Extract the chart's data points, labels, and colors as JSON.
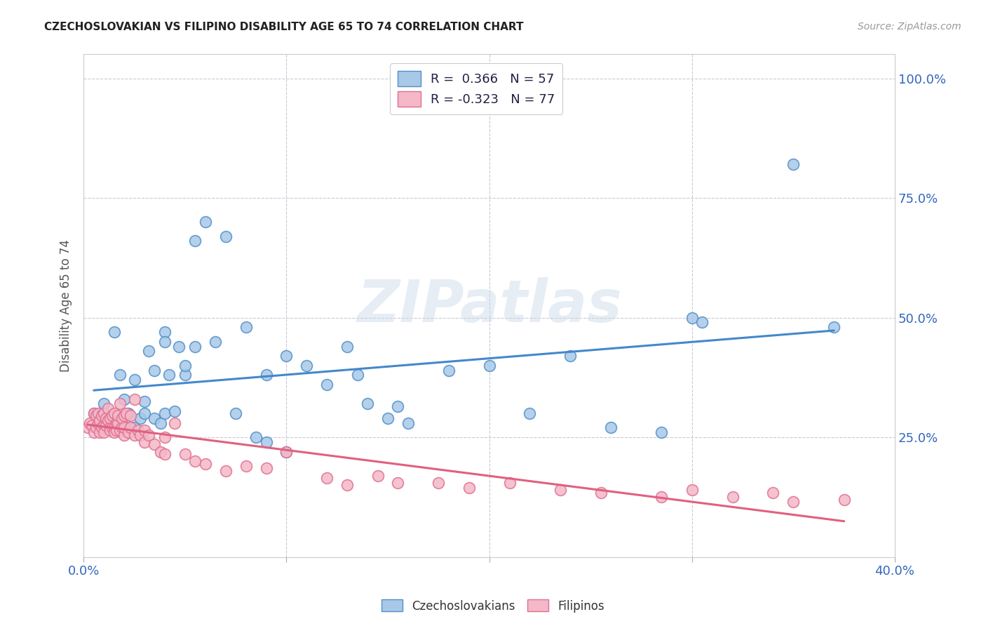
{
  "title": "CZECHOSLOVAKIAN VS FILIPINO DISABILITY AGE 65 TO 74 CORRELATION CHART",
  "source": "Source: ZipAtlas.com",
  "ylabel_label": "Disability Age 65 to 74",
  "xlim": [
    0.0,
    0.4
  ],
  "ylim": [
    0.0,
    1.05
  ],
  "xticks": [
    0.0,
    0.1,
    0.2,
    0.3,
    0.4
  ],
  "xticklabels_visible": [
    "0.0%",
    "",
    "",
    "",
    "40.0%"
  ],
  "yticks": [
    0.0,
    0.25,
    0.5,
    0.75,
    1.0
  ],
  "yticklabels": [
    "",
    "25.0%",
    "50.0%",
    "75.0%",
    "100.0%"
  ],
  "blue_R": 0.366,
  "blue_N": 57,
  "pink_R": -0.323,
  "pink_N": 77,
  "blue_color": "#a8c8e8",
  "pink_color": "#f4b8c8",
  "blue_edge_color": "#5090c8",
  "pink_edge_color": "#e07090",
  "blue_line_color": "#4488cc",
  "pink_line_color": "#e06080",
  "watermark_text": "ZIPatlas",
  "blue_scatter_x": [
    0.005,
    0.008,
    0.01,
    0.012,
    0.015,
    0.015,
    0.018,
    0.02,
    0.02,
    0.022,
    0.025,
    0.025,
    0.028,
    0.03,
    0.03,
    0.032,
    0.035,
    0.035,
    0.038,
    0.04,
    0.04,
    0.04,
    0.042,
    0.045,
    0.047,
    0.05,
    0.05,
    0.055,
    0.055,
    0.06,
    0.065,
    0.07,
    0.075,
    0.08,
    0.085,
    0.09,
    0.09,
    0.1,
    0.1,
    0.11,
    0.12,
    0.13,
    0.135,
    0.14,
    0.15,
    0.155,
    0.16,
    0.18,
    0.2,
    0.22,
    0.24,
    0.26,
    0.285,
    0.3,
    0.305,
    0.35,
    0.37
  ],
  "blue_scatter_y": [
    0.3,
    0.28,
    0.32,
    0.295,
    0.47,
    0.28,
    0.38,
    0.33,
    0.285,
    0.3,
    0.27,
    0.37,
    0.29,
    0.3,
    0.325,
    0.43,
    0.29,
    0.39,
    0.28,
    0.3,
    0.47,
    0.45,
    0.38,
    0.305,
    0.44,
    0.38,
    0.4,
    0.66,
    0.44,
    0.7,
    0.45,
    0.67,
    0.3,
    0.48,
    0.25,
    0.38,
    0.24,
    0.42,
    0.22,
    0.4,
    0.36,
    0.44,
    0.38,
    0.32,
    0.29,
    0.315,
    0.28,
    0.39,
    0.4,
    0.3,
    0.42,
    0.27,
    0.26,
    0.5,
    0.49,
    0.82,
    0.48
  ],
  "pink_scatter_x": [
    0.002,
    0.003,
    0.004,
    0.005,
    0.005,
    0.006,
    0.006,
    0.007,
    0.007,
    0.008,
    0.008,
    0.009,
    0.009,
    0.01,
    0.01,
    0.01,
    0.011,
    0.011,
    0.012,
    0.012,
    0.013,
    0.013,
    0.013,
    0.014,
    0.014,
    0.015,
    0.015,
    0.015,
    0.016,
    0.016,
    0.017,
    0.017,
    0.018,
    0.018,
    0.019,
    0.019,
    0.02,
    0.02,
    0.02,
    0.021,
    0.022,
    0.023,
    0.023,
    0.025,
    0.025,
    0.027,
    0.028,
    0.03,
    0.03,
    0.032,
    0.035,
    0.038,
    0.04,
    0.04,
    0.045,
    0.05,
    0.055,
    0.06,
    0.07,
    0.08,
    0.09,
    0.1,
    0.12,
    0.13,
    0.145,
    0.155,
    0.175,
    0.19,
    0.21,
    0.235,
    0.255,
    0.285,
    0.3,
    0.32,
    0.34,
    0.35,
    0.375
  ],
  "pink_scatter_y": [
    0.27,
    0.28,
    0.275,
    0.26,
    0.3,
    0.27,
    0.295,
    0.28,
    0.3,
    0.26,
    0.285,
    0.27,
    0.295,
    0.275,
    0.26,
    0.3,
    0.275,
    0.29,
    0.285,
    0.31,
    0.27,
    0.29,
    0.265,
    0.27,
    0.295,
    0.27,
    0.26,
    0.3,
    0.28,
    0.265,
    0.28,
    0.295,
    0.265,
    0.32,
    0.27,
    0.29,
    0.255,
    0.27,
    0.295,
    0.3,
    0.26,
    0.27,
    0.295,
    0.255,
    0.33,
    0.265,
    0.255,
    0.24,
    0.265,
    0.255,
    0.235,
    0.22,
    0.25,
    0.215,
    0.28,
    0.215,
    0.2,
    0.195,
    0.18,
    0.19,
    0.185,
    0.22,
    0.165,
    0.15,
    0.17,
    0.155,
    0.155,
    0.145,
    0.155,
    0.14,
    0.135,
    0.125,
    0.14,
    0.125,
    0.135,
    0.115,
    0.12
  ]
}
